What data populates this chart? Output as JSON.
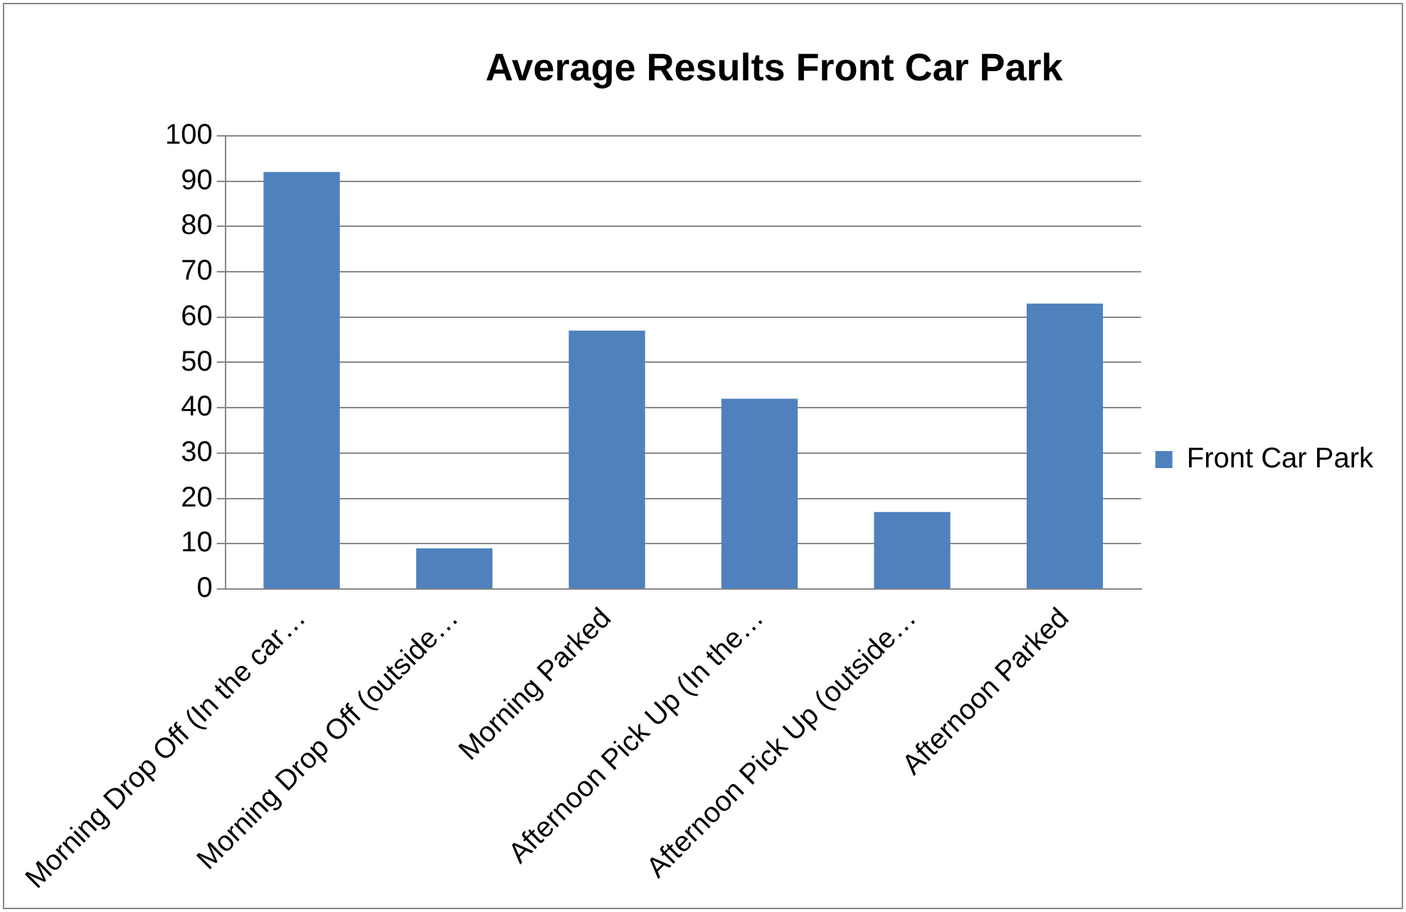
{
  "chart_data": {
    "type": "bar",
    "title": "Average Results Front Car Park",
    "categories": [
      "Morning Drop Off (In the car…",
      "Morning Drop Off (outside…",
      "Morning Parked",
      "Afternoon Pick Up (In the…",
      "Afternoon Pick Up (outside…",
      "Afternoon Parked"
    ],
    "series": [
      {
        "name": "Front Car Park",
        "color": "#4f81bd",
        "values": [
          92,
          9,
          57,
          42,
          17,
          63
        ]
      }
    ],
    "ylim": [
      0,
      100
    ],
    "yticks": [
      0,
      10,
      20,
      30,
      40,
      50,
      60,
      70,
      80,
      90,
      100
    ],
    "grid": "y",
    "legend": "right"
  }
}
